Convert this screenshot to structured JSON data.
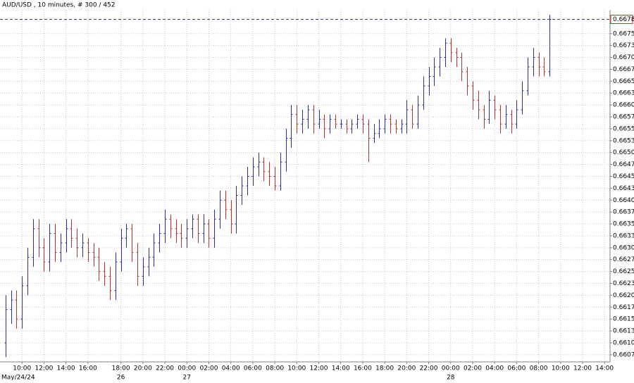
{
  "chart_data": {
    "type": "ohlc",
    "title": "AUD/USD , 10 minutes, # 300 / 452",
    "up_color": "#2e2e9c",
    "down_color": "#b83232",
    "grid": true,
    "open": [
      0.661,
      0.6617,
      0.6619,
      0.6615,
      0.6622,
      0.6628,
      0.6634,
      0.663,
      0.6627,
      0.6633,
      0.6629,
      0.6631,
      0.6634,
      0.6632,
      0.663,
      0.6631,
      0.6629,
      0.6628,
      0.6625,
      0.6624,
      0.6621,
      0.6627,
      0.6632,
      0.6634,
      0.6629,
      0.6624,
      0.6626,
      0.6628,
      0.6631,
      0.6633,
      0.6636,
      0.6634,
      0.6633,
      0.6632,
      0.6634,
      0.6636,
      0.6633,
      0.6635,
      0.6632,
      0.6636,
      0.664,
      0.6638,
      0.6635,
      0.6641,
      0.6643,
      0.6645,
      0.6647,
      0.6648,
      0.6646,
      0.6645,
      0.6643,
      0.6648,
      0.6653,
      0.6658,
      0.6656,
      0.6657,
      0.6659,
      0.6656,
      0.6657,
      0.6655,
      0.6657,
      0.6656,
      0.6656,
      0.6655,
      0.6656,
      0.6657,
      0.6656,
      0.6653,
      0.6654,
      0.6655,
      0.6657,
      0.6656,
      0.6655,
      0.6656,
      0.6659,
      0.6656,
      0.666,
      0.6664,
      0.6666,
      0.6668,
      0.667,
      0.6673,
      0.6671,
      0.667,
      0.6667,
      0.6664,
      0.6661,
      0.6659,
      0.6657,
      0.6661,
      0.6659,
      0.6656,
      0.6658,
      0.6656,
      0.6659,
      0.6663,
      0.6668,
      0.667,
      0.6668,
      0.6667
    ],
    "high": [
      0.662,
      0.6621,
      0.6621,
      0.6624,
      0.663,
      0.6636,
      0.6636,
      0.6632,
      0.6635,
      0.6635,
      0.6633,
      0.6636,
      0.6636,
      0.6634,
      0.6633,
      0.6632,
      0.6631,
      0.663,
      0.6627,
      0.6626,
      0.6629,
      0.6634,
      0.6635,
      0.6635,
      0.6631,
      0.6628,
      0.663,
      0.6633,
      0.6635,
      0.6638,
      0.6637,
      0.6636,
      0.6635,
      0.6636,
      0.6637,
      0.6637,
      0.6637,
      0.6636,
      0.6638,
      0.6642,
      0.6642,
      0.664,
      0.6643,
      0.6645,
      0.6647,
      0.6649,
      0.665,
      0.6649,
      0.6648,
      0.6647,
      0.665,
      0.6655,
      0.666,
      0.666,
      0.6659,
      0.666,
      0.666,
      0.6659,
      0.6658,
      0.6658,
      0.6658,
      0.6657,
      0.6657,
      0.6657,
      0.6658,
      0.6658,
      0.6657,
      0.6656,
      0.6657,
      0.6658,
      0.6658,
      0.6657,
      0.6657,
      0.6661,
      0.666,
      0.6662,
      0.6666,
      0.6668,
      0.667,
      0.6672,
      0.6674,
      0.6674,
      0.6672,
      0.6671,
      0.6668,
      0.6665,
      0.6663,
      0.666,
      0.6663,
      0.6662,
      0.666,
      0.666,
      0.6659,
      0.6661,
      0.6665,
      0.667,
      0.6672,
      0.6671,
      0.667,
      0.6679
    ],
    "low": [
      0.6607,
      0.6614,
      0.6613,
      0.6613,
      0.662,
      0.6626,
      0.6628,
      0.6625,
      0.6625,
      0.6627,
      0.6627,
      0.6629,
      0.663,
      0.6628,
      0.6628,
      0.6627,
      0.6626,
      0.6623,
      0.6622,
      0.6619,
      0.6619,
      0.6625,
      0.663,
      0.6627,
      0.6622,
      0.6622,
      0.6624,
      0.6626,
      0.6629,
      0.6631,
      0.6632,
      0.6631,
      0.663,
      0.663,
      0.6632,
      0.6631,
      0.6631,
      0.663,
      0.663,
      0.6634,
      0.6636,
      0.6633,
      0.6633,
      0.6639,
      0.6641,
      0.6643,
      0.6645,
      0.6644,
      0.6643,
      0.6642,
      0.6642,
      0.6646,
      0.6651,
      0.6654,
      0.6654,
      0.6655,
      0.6654,
      0.6655,
      0.6653,
      0.6654,
      0.6655,
      0.6655,
      0.6654,
      0.6654,
      0.6655,
      0.6654,
      0.6648,
      0.6652,
      0.6653,
      0.6654,
      0.6654,
      0.6654,
      0.6654,
      0.6654,
      0.6655,
      0.6655,
      0.6659,
      0.6662,
      0.6664,
      0.6666,
      0.6668,
      0.6669,
      0.6668,
      0.6665,
      0.6662,
      0.6659,
      0.6657,
      0.6655,
      0.6656,
      0.6657,
      0.6654,
      0.6655,
      0.6654,
      0.6655,
      0.6658,
      0.6662,
      0.6666,
      0.6666,
      0.6666,
      0.6666
    ],
    "close": [
      0.6617,
      0.6619,
      0.6615,
      0.6622,
      0.6628,
      0.6634,
      0.663,
      0.6627,
      0.6633,
      0.6629,
      0.6631,
      0.6634,
      0.6632,
      0.663,
      0.6631,
      0.6629,
      0.6628,
      0.6625,
      0.6624,
      0.6621,
      0.6627,
      0.6632,
      0.6634,
      0.6629,
      0.6624,
      0.6626,
      0.6628,
      0.6631,
      0.6633,
      0.6636,
      0.6634,
      0.6633,
      0.6632,
      0.6634,
      0.6636,
      0.6633,
      0.6635,
      0.6632,
      0.6636,
      0.664,
      0.6638,
      0.6635,
      0.6641,
      0.6643,
      0.6645,
      0.6647,
      0.6648,
      0.6646,
      0.6645,
      0.6643,
      0.6648,
      0.6653,
      0.6658,
      0.6656,
      0.6657,
      0.6659,
      0.6656,
      0.6657,
      0.6655,
      0.6657,
      0.6656,
      0.6656,
      0.6655,
      0.6656,
      0.6657,
      0.6656,
      0.6653,
      0.6654,
      0.6655,
      0.6657,
      0.6656,
      0.6655,
      0.6656,
      0.6659,
      0.6656,
      0.666,
      0.6664,
      0.6666,
      0.6668,
      0.667,
      0.6673,
      0.6671,
      0.667,
      0.6667,
      0.6664,
      0.6661,
      0.6659,
      0.6657,
      0.6661,
      0.6659,
      0.6656,
      0.6658,
      0.6656,
      0.6659,
      0.6663,
      0.6668,
      0.667,
      0.6668,
      0.6667,
      0.6678
    ],
    "current_price": 0.6678,
    "current_price_color": "#3a3aa8",
    "ylim": [
      0.6606,
      0.668
    ],
    "yticks": [
      {
        "value": 0.66075,
        "label": "0.6607"
      },
      {
        "value": 0.661,
        "label": "0.6610"
      },
      {
        "value": 0.66125,
        "label": "0.6613"
      },
      {
        "value": 0.6615,
        "label": "0.6615"
      },
      {
        "value": 0.66175,
        "label": "0.6617"
      },
      {
        "value": 0.662,
        "label": "0.6620"
      },
      {
        "value": 0.66225,
        "label": "0.6623"
      },
      {
        "value": 0.6625,
        "label": "0.6625"
      },
      {
        "value": 0.66275,
        "label": "0.6627"
      },
      {
        "value": 0.663,
        "label": "0.6630"
      },
      {
        "value": 0.66325,
        "label": "0.6633"
      },
      {
        "value": 0.6635,
        "label": "0.6635"
      },
      {
        "value": 0.66375,
        "label": "0.6637"
      },
      {
        "value": 0.664,
        "label": "0.6640"
      },
      {
        "value": 0.66425,
        "label": "0.6643"
      },
      {
        "value": 0.6645,
        "label": "0.6645"
      },
      {
        "value": 0.66475,
        "label": "0.6647"
      },
      {
        "value": 0.665,
        "label": "0.6650"
      },
      {
        "value": 0.66525,
        "label": "0.6653"
      },
      {
        "value": 0.6655,
        "label": "0.6655"
      },
      {
        "value": 0.66575,
        "label": "0.6657"
      },
      {
        "value": 0.666,
        "label": "0.6660"
      },
      {
        "value": 0.66625,
        "label": "0.6663"
      },
      {
        "value": 0.6665,
        "label": "0.6665"
      },
      {
        "value": 0.66675,
        "label": "0.6667"
      },
      {
        "value": 0.667,
        "label": "0.6670"
      },
      {
        "value": 0.66725,
        "label": "0.6673"
      },
      {
        "value": 0.6675,
        "label": "0.6675"
      }
    ],
    "xlim": [
      -1,
      110
    ],
    "xticks": [
      {
        "value": 3,
        "label": "10:00"
      },
      {
        "value": 7,
        "label": "12:00"
      },
      {
        "value": 11,
        "label": "14:00"
      },
      {
        "value": 15,
        "label": "16:00"
      },
      {
        "value": 21,
        "label": "18:00"
      },
      {
        "value": 25,
        "label": "20:00"
      },
      {
        "value": 29,
        "label": "22:00"
      },
      {
        "value": 33,
        "label": "00:00"
      },
      {
        "value": 37,
        "label": "02:00"
      },
      {
        "value": 41,
        "label": "04:00"
      },
      {
        "value": 45,
        "label": "06:00"
      },
      {
        "value": 49,
        "label": "08:00"
      },
      {
        "value": 53,
        "label": "10:00"
      },
      {
        "value": 57,
        "label": "12:00"
      },
      {
        "value": 61,
        "label": "14:00"
      },
      {
        "value": 65,
        "label": "16:00"
      },
      {
        "value": 69,
        "label": "18:00"
      },
      {
        "value": 73,
        "label": "20:00"
      },
      {
        "value": 77,
        "label": "22:00"
      },
      {
        "value": 81,
        "label": "00:00"
      },
      {
        "value": 85,
        "label": "02:00"
      },
      {
        "value": 89,
        "label": "04:00"
      },
      {
        "value": 93,
        "label": "06:00"
      },
      {
        "value": 97,
        "label": "08:00"
      },
      {
        "value": 101,
        "label": "10:00"
      },
      {
        "value": 105,
        "label": "12:00"
      },
      {
        "value": 109,
        "label": "14:00"
      }
    ],
    "date_labels": [
      {
        "value": 0,
        "label": "May/24/24"
      },
      {
        "value": 21,
        "label": "26"
      },
      {
        "value": 33,
        "label": "27"
      },
      {
        "value": 81,
        "label": "28"
      }
    ]
  }
}
